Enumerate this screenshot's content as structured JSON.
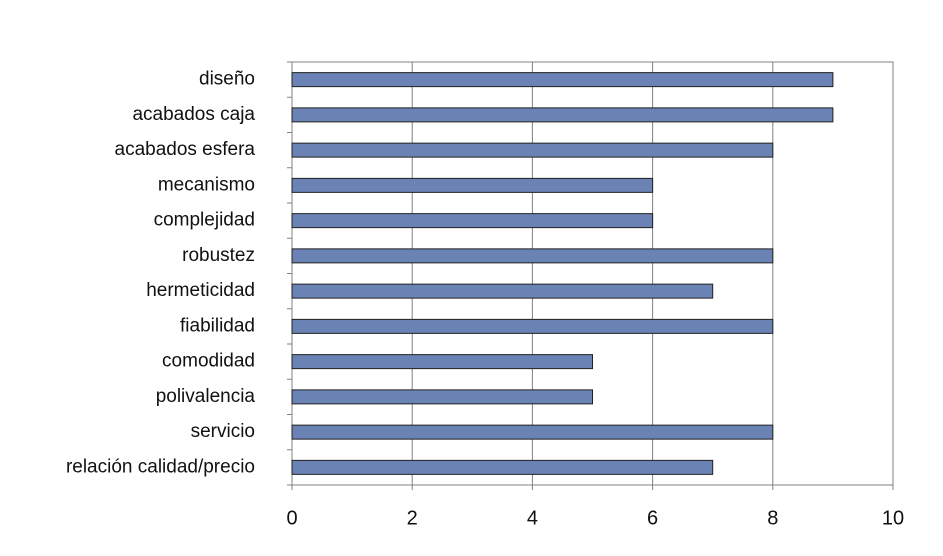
{
  "chart_data": {
    "type": "bar",
    "orientation": "horizontal",
    "categories": [
      "diseño",
      "acabados caja",
      "acabados esfera",
      "mecanismo",
      "complejidad",
      "robustez",
      "hermeticidad",
      "fiabilidad",
      "comodidad",
      "polivalencia",
      "servicio",
      "relación calidad/precio"
    ],
    "values": [
      9,
      9,
      8,
      6,
      6,
      8,
      7,
      8,
      5,
      5,
      8,
      7
    ],
    "color": "#6b82b5",
    "xlim": [
      0,
      10
    ],
    "xticks": [
      0,
      2,
      4,
      6,
      8,
      10
    ],
    "grid": true
  }
}
